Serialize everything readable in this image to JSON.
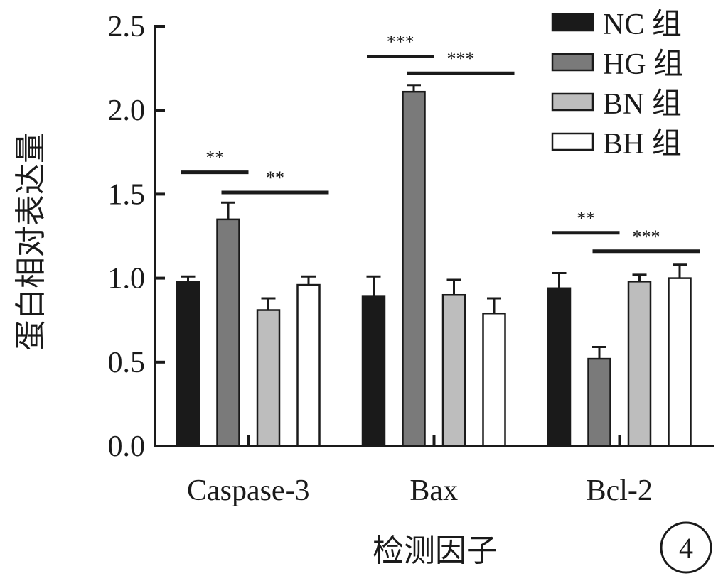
{
  "chart_data": {
    "type": "bar",
    "categories": [
      "Caspase-3",
      "Bax",
      "Bcl-2"
    ],
    "series": [
      {
        "name": "NC 组",
        "color": "#1a1a1a",
        "values": [
          0.98,
          0.89,
          0.94
        ],
        "errors": [
          0.03,
          0.12,
          0.09
        ]
      },
      {
        "name": "HG 组",
        "color": "#7a7a7a",
        "values": [
          1.35,
          2.11,
          0.52
        ],
        "errors": [
          0.1,
          0.04,
          0.07
        ]
      },
      {
        "name": "BN 组",
        "color": "#bdbdbd",
        "values": [
          0.81,
          0.9,
          0.98
        ],
        "errors": [
          0.07,
          0.09,
          0.04
        ]
      },
      {
        "name": "BH 组",
        "color": "#ffffff",
        "values": [
          0.96,
          0.79,
          1.0
        ],
        "errors": [
          0.05,
          0.09,
          0.08
        ]
      }
    ],
    "ylabel": "蛋白相对表达量",
    "xlabel": "检测因子",
    "ylim": [
      0,
      2.5
    ],
    "yticks": [
      "0.0",
      "0.5",
      "1.0",
      "1.5",
      "2.0",
      "2.5"
    ],
    "legend_position": "top-right",
    "significance": [
      {
        "category": "Caspase-3",
        "from_series": 0,
        "to_series": 1,
        "label": "**",
        "y": 1.63
      },
      {
        "category": "Caspase-3",
        "from_series": 1,
        "to_series": 3,
        "label": "**",
        "y": 1.51
      },
      {
        "category": "Bax",
        "from_series": 0,
        "to_series": 1,
        "label": "***",
        "y": 2.32
      },
      {
        "category": "Bax",
        "from_series": 1,
        "to_series": 3,
        "label": "***",
        "y": 2.22
      },
      {
        "category": "Bcl-2",
        "from_series": 0,
        "to_series": 1,
        "label": "**",
        "y": 1.27
      },
      {
        "category": "Bcl-2",
        "from_series": 1,
        "to_series": 3,
        "label": "***",
        "y": 1.16
      }
    ],
    "grid": false
  },
  "badge": "4"
}
